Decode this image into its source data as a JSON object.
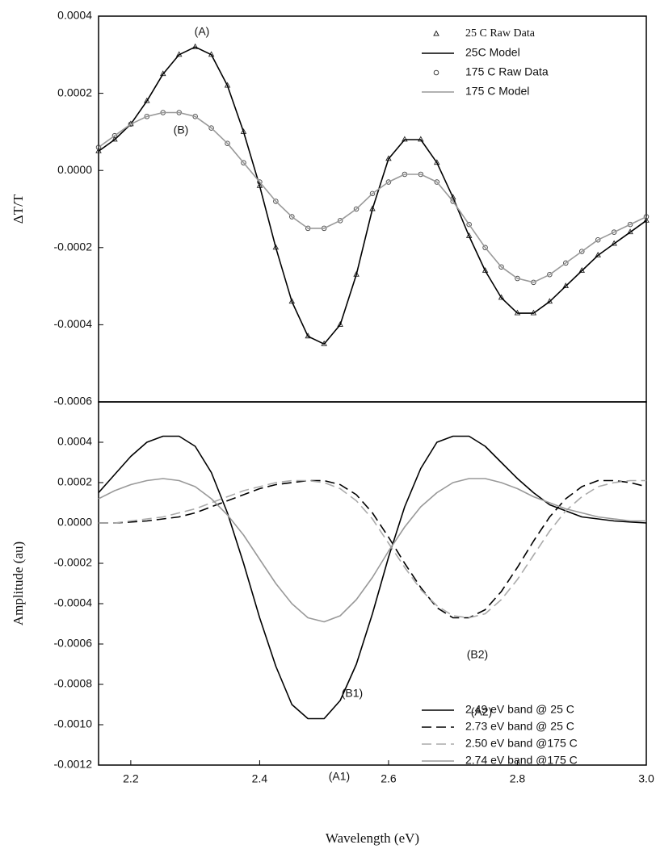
{
  "chart_data": [
    {
      "type": "line",
      "ylabel": "ΔT/T",
      "annotations": [
        "(A)",
        "(B)"
      ],
      "legend": "upper right",
      "x": [
        2.15,
        2.175,
        2.2,
        2.225,
        2.25,
        2.275,
        2.3,
        2.325,
        2.35,
        2.375,
        2.4,
        2.425,
        2.45,
        2.475,
        2.5,
        2.525,
        2.55,
        2.575,
        2.6,
        2.625,
        2.65,
        2.675,
        2.7,
        2.725,
        2.75,
        2.775,
        2.8,
        2.825,
        2.85,
        2.875,
        2.9,
        2.925,
        2.95,
        2.975,
        3.0
      ],
      "xlim": [
        2.15,
        3.0
      ],
      "ylim": [
        -0.0006,
        0.0004
      ],
      "yticks": [
        0.0004,
        0.0002,
        {
          "value": 0,
          "label": "0.0000"
        },
        -0.0002,
        -0.0004,
        -0.0006
      ],
      "series": [
        {
          "name": "25 C Raw Data",
          "color": "#222222",
          "marker": "triangle",
          "values": [
            5e-05,
            8e-05,
            0.00012,
            0.00018,
            0.00025,
            0.0003,
            0.00032,
            0.0003,
            0.00022,
            0.0001,
            -4e-05,
            -0.0002,
            -0.00034,
            -0.00043,
            -0.00045,
            -0.0004,
            -0.00027,
            -0.0001,
            3e-05,
            8e-05,
            8e-05,
            2e-05,
            -7e-05,
            -0.00017,
            -0.00026,
            -0.00033,
            -0.00037,
            -0.00037,
            -0.00034,
            -0.0003,
            -0.00026,
            -0.00022,
            -0.00019,
            -0.00016,
            -0.00013
          ]
        },
        {
          "name": "25C Model",
          "color": "#000000",
          "marker": "line",
          "values": [
            5e-05,
            8e-05,
            0.00012,
            0.00018,
            0.00025,
            0.0003,
            0.00032,
            0.0003,
            0.00022,
            0.0001,
            -4e-05,
            -0.0002,
            -0.00034,
            -0.00043,
            -0.00045,
            -0.0004,
            -0.00027,
            -0.0001,
            3e-05,
            8e-05,
            8e-05,
            2e-05,
            -7e-05,
            -0.00017,
            -0.00026,
            -0.00033,
            -0.00037,
            -0.00037,
            -0.00034,
            -0.0003,
            -0.00026,
            -0.00022,
            -0.00019,
            -0.00016,
            -0.00013
          ]
        },
        {
          "name": "175 C Raw Data",
          "color": "#444444",
          "marker": "circle",
          "values": [
            6e-05,
            9e-05,
            0.00012,
            0.00014,
            0.00015,
            0.00015,
            0.00014,
            0.00011,
            7e-05,
            2e-05,
            -3e-05,
            -8e-05,
            -0.00012,
            -0.00015,
            -0.00015,
            -0.00013,
            -0.0001,
            -6e-05,
            -3e-05,
            -1e-05,
            -1e-05,
            -3e-05,
            -8e-05,
            -0.00014,
            -0.0002,
            -0.00025,
            -0.00028,
            -0.00029,
            -0.00027,
            -0.00024,
            -0.00021,
            -0.00018,
            -0.00016,
            -0.00014,
            -0.00012
          ]
        },
        {
          "name": "175 C Model",
          "color": "#999999",
          "marker": "line",
          "values": [
            6e-05,
            9e-05,
            0.00012,
            0.00014,
            0.00015,
            0.00015,
            0.00014,
            0.00011,
            7e-05,
            2e-05,
            -3e-05,
            -8e-05,
            -0.00012,
            -0.00015,
            -0.00015,
            -0.00013,
            -0.0001,
            -6e-05,
            -3e-05,
            -1e-05,
            -1e-05,
            -3e-05,
            -8e-05,
            -0.00014,
            -0.0002,
            -0.00025,
            -0.00028,
            -0.00029,
            -0.00027,
            -0.00024,
            -0.00021,
            -0.00018,
            -0.00016,
            -0.00014,
            -0.00012
          ]
        }
      ]
    },
    {
      "type": "line",
      "ylabel": "Amplitude (au)",
      "xlabel": "Wavelength (eV)",
      "annotations": [
        "(B2)",
        "(B1)",
        "(A2)",
        "(A1)"
      ],
      "legend": "lower right",
      "x": [
        2.15,
        2.175,
        2.2,
        2.225,
        2.25,
        2.275,
        2.3,
        2.325,
        2.35,
        2.375,
        2.4,
        2.425,
        2.45,
        2.475,
        2.5,
        2.525,
        2.55,
        2.575,
        2.6,
        2.625,
        2.65,
        2.675,
        2.7,
        2.725,
        2.75,
        2.775,
        2.8,
        2.825,
        2.85,
        2.875,
        2.9,
        2.925,
        2.95,
        2.975,
        3.0
      ],
      "xlim": [
        2.15,
        3.0
      ],
      "xticks": [
        2.2,
        2.4,
        2.6,
        2.8,
        {
          "value": 3,
          "label": "3.0"
        }
      ],
      "ylim": [
        -0.0012,
        0.0006
      ],
      "yticks": [
        0.0004,
        0.0002,
        {
          "value": 0,
          "label": "0.0000"
        },
        -0.0002,
        -0.0004,
        -0.0006,
        -0.0008,
        {
          "value": -0.001,
          "label": "-0.0010"
        },
        -0.0012
      ],
      "series": [
        {
          "name": "2.49 eV band @ 25 C",
          "color": "#000000",
          "dash": false,
          "values": [
            0.00015,
            0.00024,
            0.00033,
            0.0004,
            0.00043,
            0.00043,
            0.00038,
            0.00025,
            5e-05,
            -0.0002,
            -0.00047,
            -0.00071,
            -0.0009,
            -0.00097,
            -0.00097,
            -0.00088,
            -0.0007,
            -0.00045,
            -0.00017,
            8e-05,
            0.00027,
            0.0004,
            0.00043,
            0.00043,
            0.00038,
            0.0003,
            0.00022,
            0.00015,
            9e-05,
            6e-05,
            3e-05,
            2e-05,
            1e-05,
            5e-06,
            0
          ]
        },
        {
          "name": "2.73 eV band @ 25 C",
          "color": "#000000",
          "dash": true,
          "values": [
            0,
            0,
            5e-06,
            1e-05,
            2e-05,
            3e-05,
            5e-05,
            8e-05,
            0.00011,
            0.00014,
            0.00017,
            0.00019,
            0.0002,
            0.00021,
            0.00021,
            0.00019,
            0.00014,
            5e-05,
            -7e-05,
            -0.0002,
            -0.00032,
            -0.00042,
            -0.00047,
            -0.00047,
            -0.00043,
            -0.00034,
            -0.00022,
            -9e-05,
            3e-05,
            0.00012,
            0.00018,
            0.00021,
            0.00021,
            0.0002,
            0.00018
          ]
        },
        {
          "name": "2.50 eV band @175 C",
          "color": "#aaaaaa",
          "dash": true,
          "values": [
            0,
            0,
            1e-05,
            2e-05,
            3e-05,
            5e-05,
            7e-05,
            0.0001,
            0.00013,
            0.00016,
            0.00018,
            0.0002,
            0.00021,
            0.00021,
            0.0002,
            0.00017,
            0.00011,
            2e-05,
            -0.0001,
            -0.00022,
            -0.00033,
            -0.00041,
            -0.00046,
            -0.00047,
            -0.00045,
            -0.00038,
            -0.00028,
            -0.00016,
            -4e-05,
            6e-05,
            0.00013,
            0.00018,
            0.0002,
            0.00021,
            0.00021
          ]
        },
        {
          "name": "2.74 eV band @175 C",
          "color": "#999999",
          "dash": false,
          "values": [
            0.00012,
            0.00016,
            0.00019,
            0.00021,
            0.00022,
            0.00021,
            0.00018,
            0.00012,
            4e-05,
            -6e-05,
            -0.00018,
            -0.0003,
            -0.0004,
            -0.00047,
            -0.00049,
            -0.00046,
            -0.00038,
            -0.00027,
            -0.00014,
            -2e-05,
            8e-05,
            0.00015,
            0.0002,
            0.00022,
            0.00022,
            0.0002,
            0.00017,
            0.00013,
            0.0001,
            7e-05,
            5e-05,
            3e-05,
            2e-05,
            1e-05,
            1e-05
          ]
        }
      ]
    }
  ]
}
